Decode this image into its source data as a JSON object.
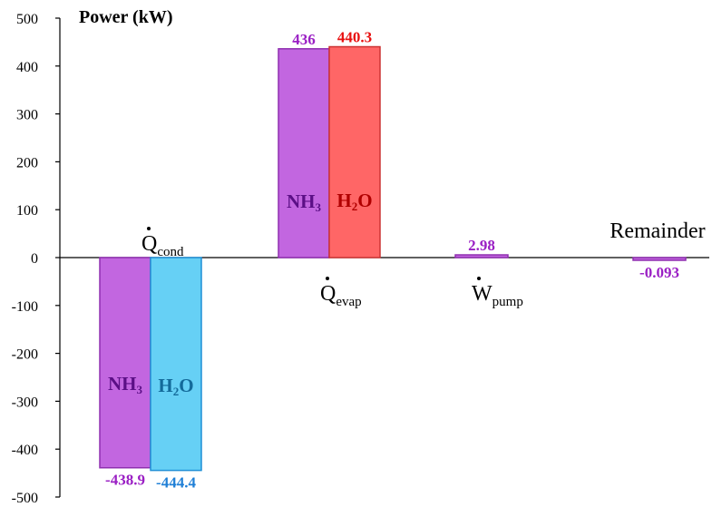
{
  "chart_data": {
    "type": "bar",
    "ylabel": "Power (kW)",
    "ylim": [
      -500,
      500
    ],
    "yticks": [
      500,
      400,
      300,
      200,
      100,
      0,
      -100,
      -200,
      -300,
      -400,
      -500
    ],
    "grid": false,
    "categories": [
      {
        "symbol": "Q",
        "dot": true,
        "sub": "cond"
      },
      {
        "symbol": "Q",
        "dot": true,
        "sub": "evap"
      },
      {
        "symbol": "W",
        "dot": true,
        "sub": "pump"
      },
      {
        "symbol": "Remainder",
        "dot": false,
        "sub": ""
      }
    ],
    "bars": [
      {
        "category": 0,
        "series": "NH3",
        "value": -438.9,
        "label": "-438.9",
        "fill": "#c266e0",
        "stroke": "#8f2fb0",
        "labelColor": "#9a1fc4",
        "inside": {
          "main": "NH",
          "sub": "3",
          "color": "#5b0f86"
        }
      },
      {
        "category": 0,
        "series": "H2O",
        "value": -444.4,
        "label": "-444.4",
        "fill": "#66d0f5",
        "stroke": "#1f8fd6",
        "labelColor": "#1f7fd6",
        "inside": {
          "main": "H",
          "sub": "2",
          "tail": "O",
          "color": "#136a9a"
        }
      },
      {
        "category": 1,
        "series": "NH3",
        "value": 436,
        "label": "436",
        "fill": "#c266e0",
        "stroke": "#8f2fb0",
        "labelColor": "#9a1fc4",
        "inside": {
          "main": "NH",
          "sub": "3",
          "color": "#5b0f86"
        }
      },
      {
        "category": 1,
        "series": "H2O",
        "value": 440.3,
        "label": "440.3",
        "fill": "#ff6666",
        "stroke": "#cc3333",
        "labelColor": "#e81010",
        "inside": {
          "main": "H",
          "sub": "2",
          "tail": "O",
          "color": "#b00000"
        }
      },
      {
        "category": 2,
        "series": "total",
        "value": 2.98,
        "label": "2.98",
        "fill": "#c266e0",
        "stroke": "#8f2fb0",
        "labelColor": "#9a1fc4",
        "inside": null
      },
      {
        "category": 3,
        "series": "total",
        "value": -0.093,
        "label": "-0.093",
        "fill": "#c266e0",
        "stroke": "#8f2fb0",
        "labelColor": "#9a1fc4",
        "inside": null
      }
    ]
  }
}
